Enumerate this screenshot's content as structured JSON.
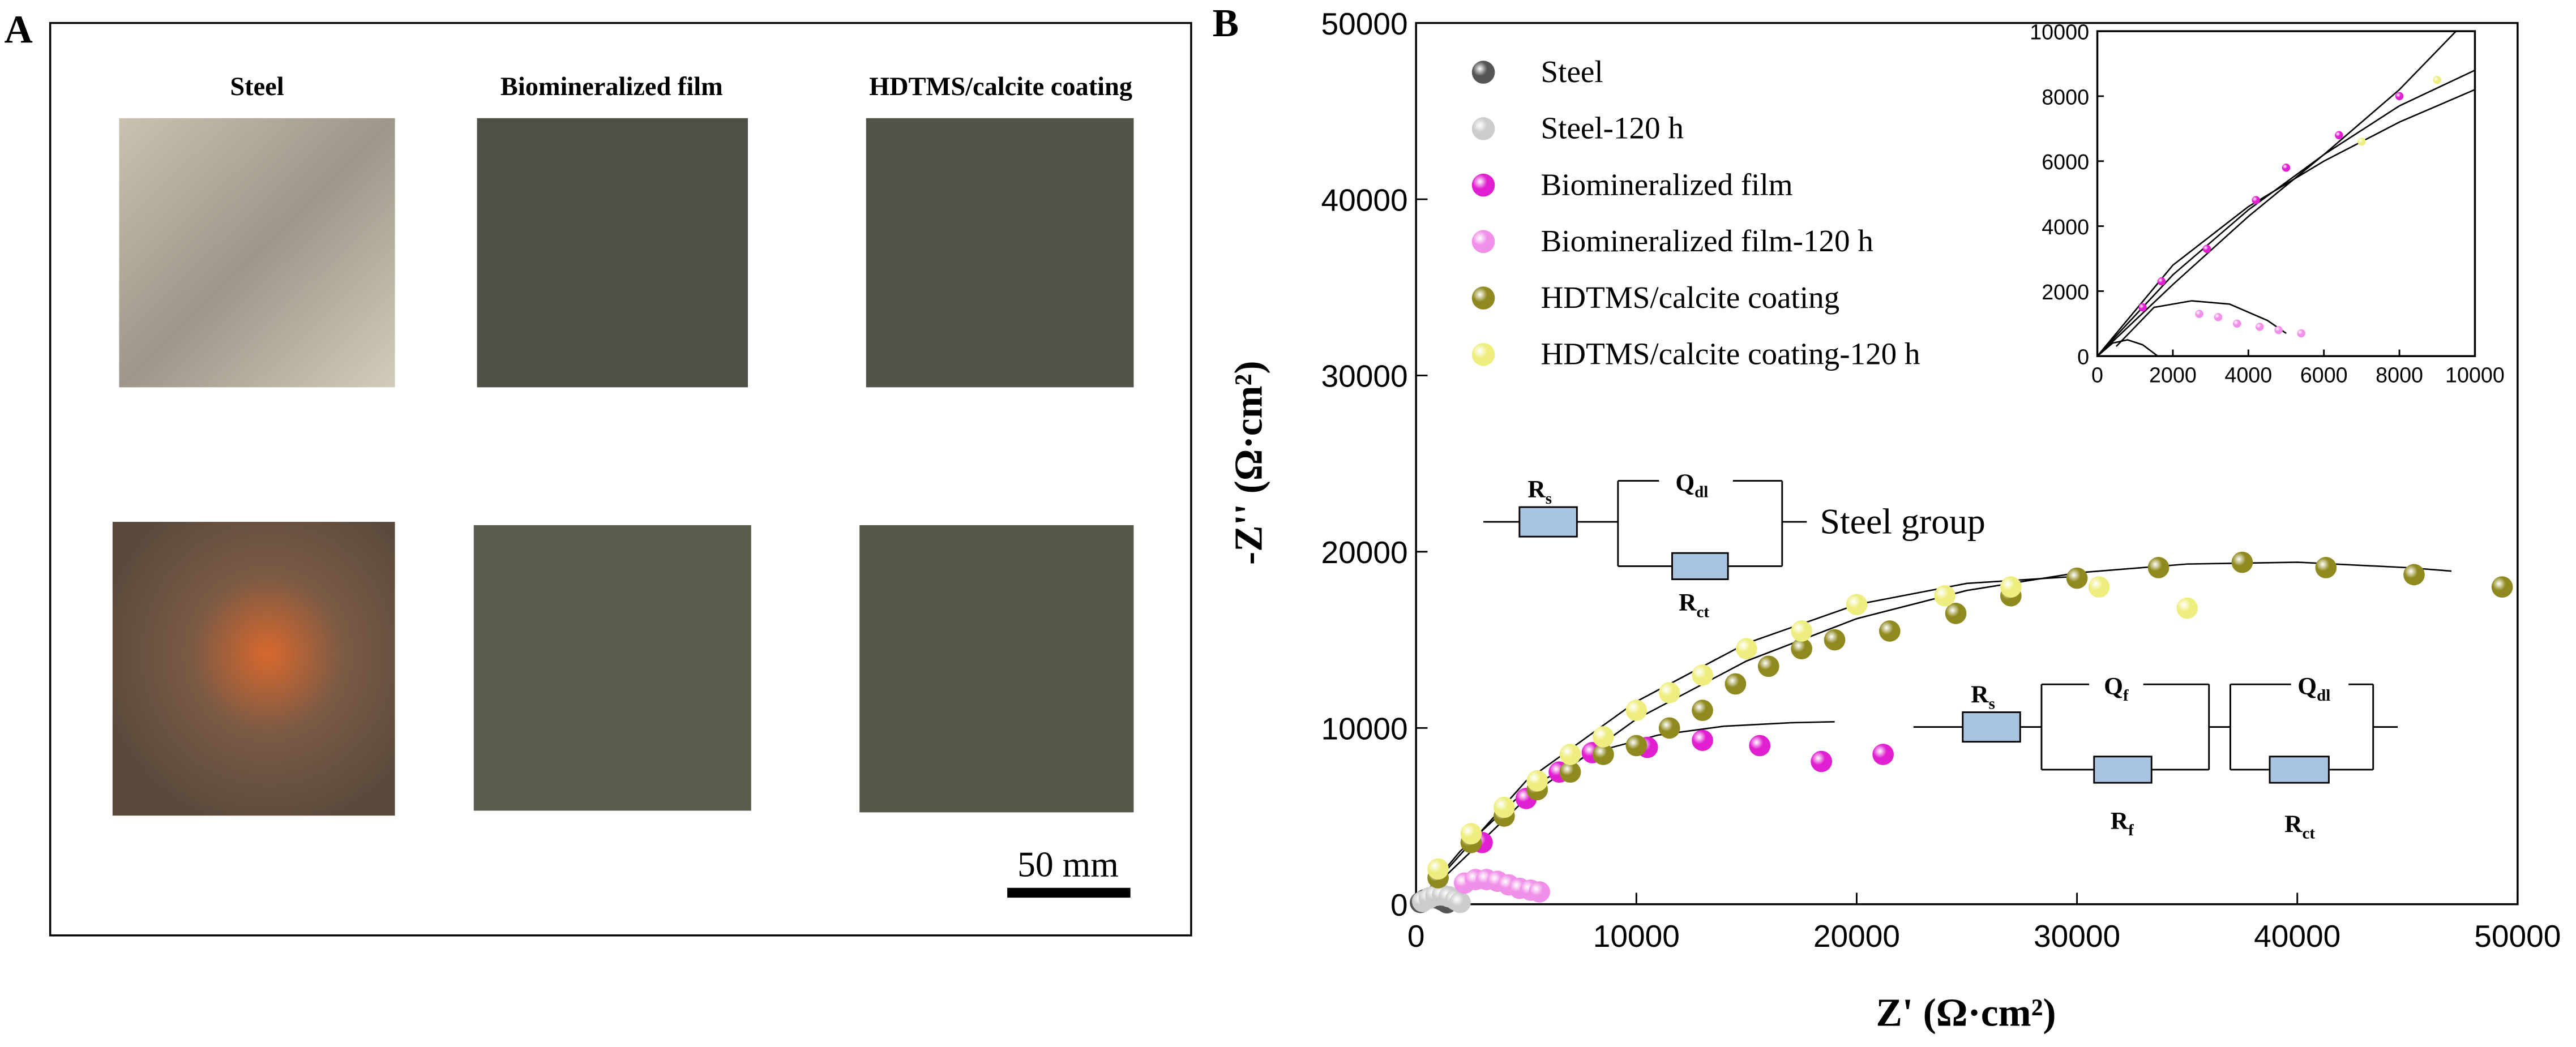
{
  "panel_a": {
    "label": "A",
    "columns": [
      "Steel",
      "Biomineralized film",
      "HDTMS/calcite coating"
    ],
    "scale_bar": "50 mm"
  },
  "chart_data": [
    {
      "type": "scatter",
      "panel_label": "B",
      "xlabel": "Z' (Ω·cm²)",
      "ylabel": "-Z'' (Ω·cm²)",
      "xlim": [
        0,
        50000
      ],
      "ylim": [
        0,
        50000
      ],
      "xticks": [
        0,
        10000,
        20000,
        30000,
        40000,
        50000
      ],
      "yticks": [
        0,
        10000,
        20000,
        30000,
        40000,
        50000
      ],
      "series": [
        {
          "name": "Steel",
          "color": "#555555",
          "x": [
            200,
            400,
            600,
            800,
            1000,
            1200,
            1400
          ],
          "values": [
            100,
            250,
            350,
            380,
            330,
            220,
            80
          ]
        },
        {
          "name": "Steel-120 h",
          "color": "#cccccc",
          "x": [
            300,
            600,
            900,
            1200,
            1500,
            1800,
            2000
          ],
          "values": [
            150,
            350,
            500,
            520,
            420,
            250,
            100
          ]
        },
        {
          "name": "Biomineralized film",
          "color": "#e020d0",
          "x": [
            3000,
            5000,
            6500,
            8000,
            10500,
            13000,
            15600,
            18400,
            21200
          ],
          "values": [
            3500,
            6000,
            7500,
            8600,
            8900,
            9300,
            9000,
            8100,
            8500
          ]
        },
        {
          "name": "Biomineralized film-120 h",
          "color": "#f090e8",
          "x": [
            2200,
            2700,
            3200,
            3700,
            4200,
            4700,
            5200,
            5600
          ],
          "values": [
            1200,
            1400,
            1400,
            1300,
            1100,
            900,
            800,
            700
          ]
        },
        {
          "name": "HDTMS/calcite coating",
          "color": "#8f8a20",
          "x": [
            1000,
            2500,
            4000,
            5500,
            7000,
            8500,
            10000,
            11500,
            13000,
            14500,
            16000,
            17500,
            19000,
            21500,
            24500,
            27000,
            30000,
            33700,
            37500,
            41300,
            45300,
            49300
          ],
          "values": [
            1500,
            3500,
            5000,
            6500,
            7500,
            8500,
            9000,
            10000,
            11000,
            12500,
            13500,
            14500,
            15000,
            15500,
            16500,
            17500,
            18500,
            19100,
            19400,
            19100,
            18700,
            18000
          ]
        },
        {
          "name": "HDTMS/calcite coating-120 h",
          "color": "#eeee80",
          "x": [
            1000,
            2500,
            4000,
            5500,
            7000,
            8500,
            10000,
            11500,
            13000,
            15000,
            17500,
            20000,
            24000,
            27000,
            31000,
            35000
          ],
          "values": [
            2000,
            4000,
            5500,
            7000,
            8500,
            9500,
            11000,
            12000,
            13000,
            14500,
            15500,
            17000,
            17500,
            18000,
            18000,
            16800
          ]
        }
      ],
      "fit_lines": [
        {
          "x": [
            0,
            2000,
            5000,
            8000,
            11000,
            14000,
            17000,
            19000
          ],
          "values": [
            0,
            3000,
            6500,
            8600,
            9600,
            10100,
            10300,
            10350
          ]
        },
        {
          "x": [
            0,
            5000,
            10000,
            15000,
            20000,
            25000,
            30000,
            35000,
            40000,
            45000,
            47000
          ],
          "values": [
            0,
            6000,
            10500,
            13800,
            16200,
            17800,
            18800,
            19300,
            19400,
            19100,
            18900
          ]
        },
        {
          "x": [
            0,
            5000,
            10000,
            15000,
            20000,
            25000,
            30000
          ],
          "values": [
            0,
            7000,
            11500,
            14800,
            17000,
            18200,
            18600
          ]
        },
        {
          "x": [
            0,
            500,
            1000,
            1500
          ],
          "values": [
            0,
            400,
            400,
            0
          ]
        },
        {
          "x": [
            1500,
            2500,
            3500,
            4500,
            5500
          ],
          "values": [
            500,
            1400,
            1500,
            1200,
            700
          ]
        }
      ],
      "circuits": {
        "steel_group": "Steel group",
        "labels": [
          {
            "main": "R",
            "sub": "s"
          },
          {
            "main": "Q",
            "sub": "dl"
          },
          {
            "main": "R",
            "sub": "ct"
          },
          {
            "main": "R",
            "sub": "s"
          },
          {
            "main": "Q",
            "sub": "f"
          },
          {
            "main": "R",
            "sub": "f"
          },
          {
            "main": "Q",
            "sub": "dl"
          },
          {
            "main": "R",
            "sub": "ct"
          }
        ]
      }
    },
    {
      "type": "scatter",
      "xlim": [
        0,
        10000
      ],
      "ylim": [
        0,
        10000
      ],
      "xticks": [
        0,
        2000,
        4000,
        6000,
        8000,
        10000
      ],
      "yticks": [
        0,
        2000,
        4000,
        6000,
        8000,
        10000
      ],
      "series": [
        {
          "color": "#e020d0",
          "x": [
            1200,
            1700,
            2900,
            4200,
            5000,
            6400,
            8000
          ],
          "values": [
            1500,
            2300,
            3300,
            4800,
            5800,
            6800,
            8000
          ]
        },
        {
          "color": "#f090e8",
          "x": [
            2700,
            3200,
            3700,
            4300,
            4800,
            5400
          ],
          "values": [
            1300,
            1200,
            1000,
            900,
            800,
            700
          ]
        },
        {
          "color": "#eeee80",
          "x": [
            7000,
            9000
          ],
          "values": [
            6600,
            8500
          ]
        }
      ],
      "fit_lines": [
        {
          "x": [
            0,
            400,
            800,
            1200,
            1600
          ],
          "values": [
            0,
            400,
            500,
            350,
            0
          ]
        },
        {
          "x": [
            500,
            1500,
            2500,
            3500,
            4500,
            5000
          ],
          "values": [
            300,
            1500,
            1700,
            1600,
            1100,
            700
          ]
        },
        {
          "x": [
            0,
            2000,
            4000,
            6000,
            8000,
            9500
          ],
          "values": [
            0,
            2200,
            4300,
            6200,
            8200,
            10000
          ]
        },
        {
          "x": [
            0,
            2000,
            4000,
            6000,
            8000,
            10000
          ],
          "values": [
            0,
            2500,
            4500,
            6200,
            7700,
            8800
          ]
        },
        {
          "x": [
            0,
            2000,
            4000,
            6000,
            8000,
            10000
          ],
          "values": [
            0,
            2800,
            4600,
            6000,
            7200,
            8200
          ]
        }
      ]
    }
  ]
}
